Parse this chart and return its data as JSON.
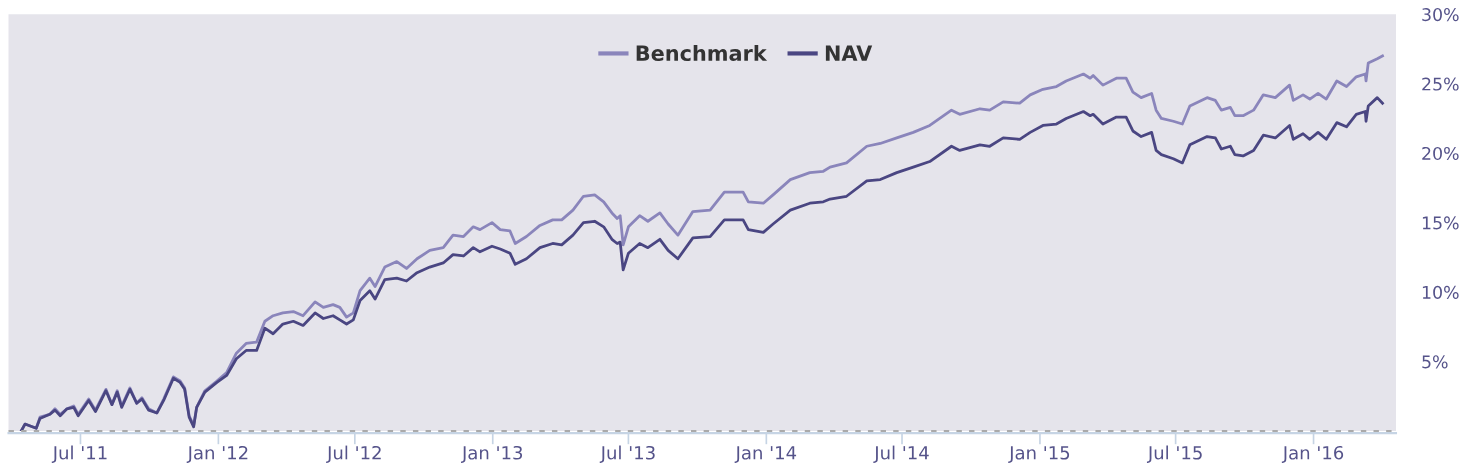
{
  "chart_data": {
    "type": "line",
    "legend": "top",
    "grid": false,
    "x": [
      "2011-04-13",
      "2011-04-18",
      "2011-05-03",
      "2011-05-08",
      "2011-05-21",
      "2011-05-28",
      "2011-06-04",
      "2011-06-13",
      "2011-06-22",
      "2011-06-28",
      "2011-07-12",
      "2011-07-21",
      "2011-08-04",
      "2011-08-12",
      "2011-08-19",
      "2011-08-25",
      "2011-09-05",
      "2011-09-14",
      "2011-09-21",
      "2011-09-30",
      "2011-10-11",
      "2011-10-20",
      "2011-11-02",
      "2011-11-11",
      "2011-11-17",
      "2011-11-23",
      "2011-11-29",
      "2011-12-03",
      "2011-12-14",
      "2011-12-30",
      "2012-01-12",
      "2012-01-25",
      "2012-02-07",
      "2012-02-21",
      "2012-03-03",
      "2012-03-14",
      "2012-03-27",
      "2012-04-10",
      "2012-04-23",
      "2012-05-09",
      "2012-05-20",
      "2012-06-02",
      "2012-06-11",
      "2012-06-20",
      "2012-06-29",
      "2012-07-08",
      "2012-07-21",
      "2012-07-28",
      "2012-08-10",
      "2012-08-26",
      "2012-09-08",
      "2012-09-22",
      "2012-10-09",
      "2012-10-27",
      "2012-11-09",
      "2012-11-23",
      "2012-12-06",
      "2012-12-15",
      "2012-12-31",
      "2013-01-11",
      "2013-01-24",
      "2013-01-31",
      "2013-02-15",
      "2013-03-05",
      "2013-03-22",
      "2013-04-03",
      "2013-04-18",
      "2013-05-02",
      "2013-05-17",
      "2013-05-29",
      "2013-06-09",
      "2013-06-16",
      "2013-06-20",
      "2013-06-24",
      "2013-07-01",
      "2013-07-16",
      "2013-07-27",
      "2013-08-12",
      "2013-08-23",
      "2013-09-05",
      "2013-09-25",
      "2013-10-18",
      "2013-11-06",
      "2013-12-01",
      "2013-12-08",
      "2013-12-28",
      "2014-01-10",
      "2014-02-02",
      "2014-02-28",
      "2014-03-18",
      "2014-03-27",
      "2014-04-18",
      "2014-05-15",
      "2014-06-02",
      "2014-06-24",
      "2014-07-16",
      "2014-08-07",
      "2014-09-05",
      "2014-09-16",
      "2014-10-13",
      "2014-10-26",
      "2014-11-13",
      "2014-12-05",
      "2014-12-19",
      "2015-01-05",
      "2015-01-23",
      "2015-02-05",
      "2015-02-28",
      "2015-03-09",
      "2015-03-13",
      "2015-03-26",
      "2015-04-13",
      "2015-04-26",
      "2015-05-05",
      "2015-05-16",
      "2015-05-30",
      "2015-06-05",
      "2015-06-12",
      "2015-06-28",
      "2015-07-10",
      "2015-07-20",
      "2015-08-12",
      "2015-08-23",
      "2015-08-31",
      "2015-09-12",
      "2015-09-18",
      "2015-09-29",
      "2015-10-13",
      "2015-10-26",
      "2015-11-11",
      "2015-11-30",
      "2015-12-05",
      "2015-12-18",
      "2015-12-27",
      "2016-01-07",
      "2016-01-18",
      "2016-02-01",
      "2016-02-14",
      "2016-02-27",
      "2016-03-10",
      "2016-03-11",
      "2016-03-14",
      "2016-03-26",
      "2016-04-02"
    ],
    "series": [
      {
        "name": "Benchmark",
        "color": "#8a85bb",
        "values": [
          0.0,
          0.5,
          0.2,
          1.0,
          1.2,
          1.6,
          1.2,
          1.6,
          1.8,
          1.2,
          2.3,
          1.5,
          3.0,
          1.9,
          2.9,
          1.8,
          3.1,
          2.0,
          2.4,
          1.6,
          1.3,
          2.3,
          3.9,
          3.6,
          3.1,
          1.1,
          0.4,
          1.7,
          2.9,
          3.6,
          4.2,
          5.6,
          6.3,
          6.4,
          7.9,
          8.3,
          8.5,
          8.6,
          8.3,
          9.3,
          8.9,
          9.1,
          8.9,
          8.2,
          8.5,
          10.1,
          11.0,
          10.4,
          11.8,
          12.2,
          11.7,
          12.4,
          13.0,
          13.2,
          14.1,
          14.0,
          14.7,
          14.5,
          15.0,
          14.5,
          14.4,
          13.5,
          14.0,
          14.8,
          15.2,
          15.2,
          15.9,
          16.9,
          17.0,
          16.5,
          15.7,
          15.3,
          15.5,
          13.4,
          14.7,
          15.5,
          15.1,
          15.7,
          14.9,
          14.1,
          15.8,
          15.9,
          17.2,
          17.2,
          16.5,
          16.4,
          17.0,
          18.1,
          18.6,
          18.7,
          19.0,
          19.3,
          20.5,
          20.7,
          21.1,
          21.5,
          22.0,
          23.1,
          22.8,
          23.2,
          23.1,
          23.7,
          23.6,
          24.2,
          24.6,
          24.8,
          25.2,
          25.7,
          25.4,
          25.6,
          24.9,
          25.4,
          25.4,
          24.4,
          24.0,
          24.3,
          23.1,
          22.5,
          22.3,
          22.1,
          23.4,
          24.0,
          23.8,
          23.1,
          23.3,
          22.7,
          22.7,
          23.1,
          24.2,
          24.0,
          24.9,
          23.8,
          24.2,
          23.9,
          24.3,
          23.9,
          25.2,
          24.8,
          25.5,
          25.7,
          25.2,
          26.5,
          26.8,
          27.0
        ]
      },
      {
        "name": "NAV",
        "color": "#4a4682",
        "values": [
          0.0,
          0.5,
          0.2,
          0.9,
          1.2,
          1.5,
          1.1,
          1.6,
          1.7,
          1.1,
          2.2,
          1.4,
          2.9,
          1.9,
          2.8,
          1.7,
          3.0,
          2.0,
          2.3,
          1.5,
          1.3,
          2.2,
          3.8,
          3.5,
          3.0,
          1.0,
          0.3,
          1.7,
          2.8,
          3.5,
          4.0,
          5.2,
          5.8,
          5.8,
          7.4,
          7.0,
          7.7,
          7.9,
          7.6,
          8.5,
          8.1,
          8.3,
          8.0,
          7.7,
          8.0,
          9.4,
          10.1,
          9.5,
          10.9,
          11.0,
          10.8,
          11.4,
          11.8,
          12.1,
          12.7,
          12.6,
          13.2,
          12.9,
          13.3,
          13.1,
          12.8,
          12.0,
          12.4,
          13.2,
          13.5,
          13.4,
          14.1,
          15.0,
          15.1,
          14.7,
          13.8,
          13.5,
          13.6,
          11.6,
          12.8,
          13.5,
          13.2,
          13.8,
          13.0,
          12.4,
          13.9,
          14.0,
          15.2,
          15.2,
          14.5,
          14.3,
          14.9,
          15.9,
          16.4,
          16.5,
          16.7,
          16.9,
          18.0,
          18.1,
          18.6,
          19.0,
          19.4,
          20.5,
          20.2,
          20.6,
          20.5,
          21.1,
          21.0,
          21.5,
          22.0,
          22.1,
          22.5,
          23.0,
          22.7,
          22.8,
          22.1,
          22.6,
          22.6,
          21.6,
          21.2,
          21.5,
          20.2,
          19.9,
          19.6,
          19.3,
          20.6,
          21.2,
          21.1,
          20.3,
          20.5,
          19.9,
          19.8,
          20.2,
          21.3,
          21.1,
          22.0,
          21.0,
          21.4,
          21.0,
          21.5,
          21.0,
          22.2,
          21.9,
          22.8,
          23.0,
          22.3,
          23.4,
          24.0,
          23.6
        ]
      }
    ],
    "xlim": [
      "2011-03-27",
      "2016-04-20"
    ],
    "xticks": [
      {
        "value": "2011-07-01",
        "label": "Jul '11"
      },
      {
        "value": "2012-01-01",
        "label": "Jan '12"
      },
      {
        "value": "2012-07-01",
        "label": "Jul '12"
      },
      {
        "value": "2013-01-01",
        "label": "Jan '13"
      },
      {
        "value": "2013-07-01",
        "label": "Jul '13"
      },
      {
        "value": "2014-01-01",
        "label": "Jan '14"
      },
      {
        "value": "2014-07-01",
        "label": "Jul '14"
      },
      {
        "value": "2015-01-01",
        "label": "Jan '15"
      },
      {
        "value": "2015-07-01",
        "label": "Jul '15"
      },
      {
        "value": "2016-01-01",
        "label": "Jan '16"
      }
    ],
    "ylim": [
      0,
      30
    ],
    "yticks": [
      {
        "value": 5,
        "label": "5%"
      },
      {
        "value": 10,
        "label": "10%"
      },
      {
        "value": 15,
        "label": "15%"
      },
      {
        "value": 20,
        "label": "20%"
      },
      {
        "value": 25,
        "label": "25%"
      },
      {
        "value": 30,
        "label": "30%"
      }
    ],
    "ref_lines": [
      {
        "axis": "y",
        "value": 0,
        "color": "#aaaaaa",
        "line_style": "dashed"
      }
    ]
  }
}
